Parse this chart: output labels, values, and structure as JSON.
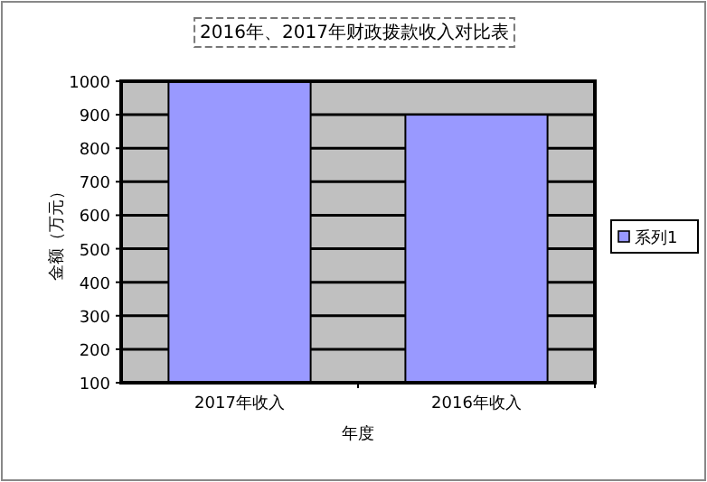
{
  "chart_data": {
    "type": "bar",
    "title": "2016年、2017年财政拨款收入对比表",
    "xlabel": "年度",
    "ylabel": "金额（万元）",
    "categories": [
      "2017年收入",
      "2016年收入"
    ],
    "series": [
      {
        "name": "系列1",
        "color": "#9999ff",
        "values": [
          1000,
          900
        ]
      }
    ],
    "ylim": [
      100,
      1000
    ],
    "yticks": [
      100,
      200,
      300,
      400,
      500,
      600,
      700,
      800,
      900,
      1000
    ],
    "grid": "y",
    "legend": "right"
  }
}
